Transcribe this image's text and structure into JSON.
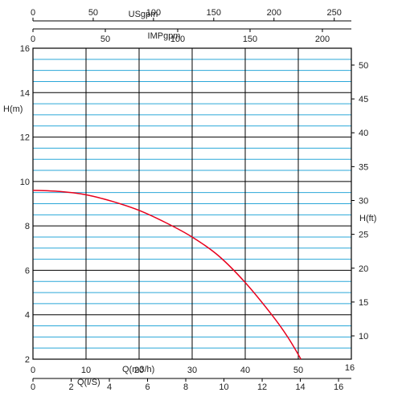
{
  "chart_data": {
    "type": "line",
    "title": "",
    "grid": true,
    "axes": {
      "left": {
        "label": "H(m)",
        "min": 2,
        "max": 16,
        "ticks": [
          2,
          4,
          6,
          8,
          10,
          12,
          14,
          16
        ]
      },
      "right": {
        "label": "H(ft)",
        "min": 6.56,
        "max": 52.49,
        "ticks": [
          10,
          15,
          20,
          25,
          30,
          35,
          40,
          45,
          50
        ]
      },
      "bottom_m3h": {
        "label": "Q(m3/h)",
        "min": 0,
        "max": 60,
        "ticks": [
          0,
          10,
          20,
          30,
          40,
          50
        ]
      },
      "bottom_ls": {
        "label": "Q(l/S)",
        "min": 0,
        "max": 16.67,
        "ticks": [
          0,
          2,
          4,
          6,
          8,
          10,
          12,
          14,
          16
        ],
        "extra_tick_label": "16"
      },
      "top_us": {
        "label": "USgpm",
        "min": 0,
        "max": 264.2,
        "ticks": [
          0,
          50,
          100,
          150,
          200,
          250
        ]
      },
      "top_imp": {
        "label": "IMPgpm",
        "min": 0,
        "max": 220,
        "ticks": [
          0,
          50,
          100,
          150,
          200
        ]
      }
    },
    "tick_label_overrides": {
      "bottom_ls_0": "0",
      "top_us_0": "0"
    },
    "series": [
      {
        "color": "#e8001c",
        "x": [
          0,
          5,
          10,
          15,
          20,
          25,
          30,
          35,
          40,
          45,
          48,
          50.5
        ],
        "y": [
          9.6,
          9.55,
          9.4,
          9.1,
          8.7,
          8.15,
          7.5,
          6.65,
          5.45,
          4.0,
          3.0,
          2.0
        ]
      }
    ]
  },
  "colors": {
    "frame": "#000000",
    "grid_major": "#000000",
    "grid_minor": "#2aa7d8",
    "curve": "#e8001c"
  }
}
